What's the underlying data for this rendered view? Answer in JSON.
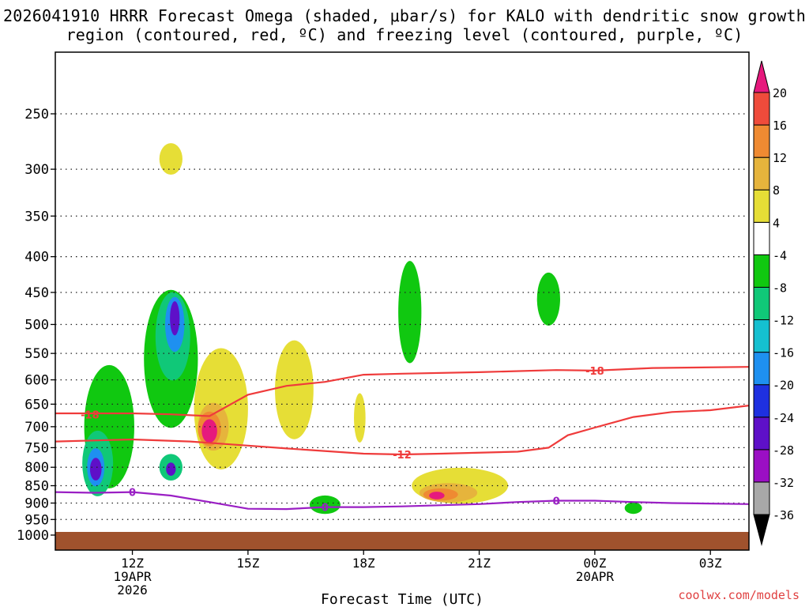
{
  "title": "2026041910 HRRR Forecast Omega (shaded, μbar/s) for KALO with dendritic snow growth region (contoured, red, ºC) and freezing level (contoured, purple, ºC)",
  "watermark": "coolwx.com/models",
  "colors": {
    "ground": "#a0522d",
    "dgz_contour": "#ef3b3b",
    "freezing_contour": "#9a1fc4",
    "grid": "#222222"
  },
  "chart_data": {
    "type": "heatmap",
    "xlabel": "Forecast Time (UTC)",
    "ylabel": "",
    "y_scale": "log",
    "ylim": [
      1000,
      200
    ],
    "grid": true,
    "x_ticks": [
      {
        "label": "12Z",
        "sub": "19APR",
        "sub2": "2026",
        "hour": 12
      },
      {
        "label": "15Z",
        "sub": "",
        "sub2": "",
        "hour": 15
      },
      {
        "label": "18Z",
        "sub": "",
        "sub2": "",
        "hour": 18
      },
      {
        "label": "21Z",
        "sub": "",
        "sub2": "",
        "hour": 21
      },
      {
        "label": "00Z",
        "sub": "20APR",
        "sub2": "",
        "hour": 24
      },
      {
        "label": "03Z",
        "sub": "",
        "sub2": "",
        "hour": 27
      }
    ],
    "xlim_hours": [
      10,
      28
    ],
    "y_ticks": [
      250,
      300,
      350,
      400,
      450,
      500,
      550,
      600,
      650,
      700,
      750,
      800,
      850,
      900,
      950,
      1000
    ],
    "colorbar": {
      "levels": [
        -36,
        -32,
        -28,
        -24,
        -20,
        -16,
        -12,
        -8,
        -4,
        4,
        8,
        12,
        16,
        20
      ],
      "colors": [
        "#a8a8a8",
        "#9b0fc4",
        "#5e10c8",
        "#1e30e0",
        "#1e90f0",
        "#15c0d0",
        "#10c878",
        "#10c810",
        "#ffffff",
        "#e6de36",
        "#e6b43c",
        "#ef8a32",
        "#ef4b3b",
        "#e6197d"
      ],
      "below_color": "#000000",
      "above_color": "#e6197d"
    },
    "omega_areas": [
      {
        "value": -8,
        "time": 11.4,
        "pressure": 700,
        "dt": 1.3,
        "dp": 280
      },
      {
        "value": -12,
        "time": 11.1,
        "pressure": 790,
        "dt": 0.8,
        "dp": 170
      },
      {
        "value": -20,
        "time": 11.05,
        "pressure": 800,
        "dt": 0.45,
        "dp": 100
      },
      {
        "value": -28,
        "time": 11.05,
        "pressure": 805,
        "dt": 0.3,
        "dp": 60
      },
      {
        "value": -8,
        "time": 13.0,
        "pressure": 560,
        "dt": 1.4,
        "dp": 250
      },
      {
        "value": -12,
        "time": 13.05,
        "pressure": 520,
        "dt": 0.9,
        "dp": 150
      },
      {
        "value": -20,
        "time": 13.1,
        "pressure": 500,
        "dt": 0.5,
        "dp": 90
      },
      {
        "value": -28,
        "time": 13.1,
        "pressure": 490,
        "dt": 0.25,
        "dp": 55
      },
      {
        "value": -12,
        "time": 13.0,
        "pressure": 800,
        "dt": 0.6,
        "dp": 70
      },
      {
        "value": -28,
        "time": 13.0,
        "pressure": 805,
        "dt": 0.25,
        "dp": 35
      },
      {
        "value": 4,
        "time": 13.0,
        "pressure": 290,
        "dt": 0.6,
        "dp": 30
      },
      {
        "value": 4,
        "time": 14.3,
        "pressure": 660,
        "dt": 1.4,
        "dp": 260
      },
      {
        "value": 8,
        "time": 14.1,
        "pressure": 700,
        "dt": 0.8,
        "dp": 110
      },
      {
        "value": 12,
        "time": 14.0,
        "pressure": 705,
        "dt": 0.6,
        "dp": 80
      },
      {
        "value": 20,
        "time": 14.0,
        "pressure": 710,
        "dt": 0.4,
        "dp": 55
      },
      {
        "value": 4,
        "time": 16.2,
        "pressure": 620,
        "dt": 1.0,
        "dp": 200
      },
      {
        "value": -8,
        "time": 17.0,
        "pressure": 905,
        "dt": 0.8,
        "dp": 55
      },
      {
        "value": 4,
        "time": 17.9,
        "pressure": 680,
        "dt": 0.3,
        "dp": 110
      },
      {
        "value": -8,
        "time": 19.2,
        "pressure": 480,
        "dt": 0.6,
        "dp": 160
      },
      {
        "value": 4,
        "time": 20.5,
        "pressure": 850,
        "dt": 2.5,
        "dp": 100
      },
      {
        "value": 8,
        "time": 20.2,
        "pressure": 870,
        "dt": 1.5,
        "dp": 55
      },
      {
        "value": 12,
        "time": 20.0,
        "pressure": 875,
        "dt": 0.9,
        "dp": 35
      },
      {
        "value": 20,
        "time": 19.9,
        "pressure": 878,
        "dt": 0.4,
        "dp": 22
      },
      {
        "value": -8,
        "time": 22.8,
        "pressure": 460,
        "dt": 0.6,
        "dp": 80
      },
      {
        "value": -8,
        "time": 25.0,
        "pressure": 915,
        "dt": 0.45,
        "dp": 35
      }
    ],
    "contours": [
      {
        "label": "-18",
        "color_key": "dgz_contour",
        "label_hour": 10.9,
        "label_pressure": 673,
        "points": [
          [
            10.0,
            670
          ],
          [
            11.0,
            670
          ],
          [
            12.0,
            670
          ],
          [
            13.0,
            672
          ],
          [
            14.0,
            676
          ],
          [
            15.0,
            630
          ],
          [
            16.0,
            612
          ],
          [
            17.0,
            604
          ],
          [
            18.0,
            590
          ],
          [
            19.0,
            588
          ],
          [
            21.0,
            585
          ],
          [
            23.0,
            581
          ],
          [
            24.0,
            582
          ],
          [
            25.5,
            577
          ],
          [
            28.0,
            575
          ]
        ]
      },
      {
        "label": "-18",
        "color_key": "dgz_contour",
        "label_hour": 24.0,
        "label_pressure": 582,
        "points": []
      },
      {
        "label": "-12",
        "color_key": "dgz_contour",
        "label_hour": 19.0,
        "label_pressure": 767,
        "points": [
          [
            10.0,
            735
          ],
          [
            12.0,
            730
          ],
          [
            13.5,
            735
          ],
          [
            15.0,
            745
          ],
          [
            16.0,
            752
          ],
          [
            18.0,
            765
          ],
          [
            19.0,
            767
          ],
          [
            20.0,
            765
          ],
          [
            22.0,
            760
          ],
          [
            22.8,
            750
          ],
          [
            23.3,
            720
          ],
          [
            24.0,
            702
          ],
          [
            25.0,
            678
          ],
          [
            26.0,
            667
          ],
          [
            27.0,
            663
          ],
          [
            28.0,
            653
          ]
        ]
      },
      {
        "label": "0",
        "color_key": "freezing_contour",
        "label_hour": 12.0,
        "label_pressure": 868,
        "points": [
          [
            10.0,
            868
          ],
          [
            11.0,
            870
          ],
          [
            12.0,
            868
          ],
          [
            13.0,
            878
          ],
          [
            14.0,
            897
          ],
          [
            15.0,
            917
          ],
          [
            16.0,
            918
          ],
          [
            17.0,
            912
          ],
          [
            18.0,
            912
          ],
          [
            19.0,
            910
          ],
          [
            21.0,
            903
          ],
          [
            22.0,
            897
          ],
          [
            23.0,
            893
          ],
          [
            24.0,
            893
          ],
          [
            25.0,
            897
          ],
          [
            26.0,
            900
          ],
          [
            28.0,
            903
          ]
        ]
      },
      {
        "label": "0",
        "color_key": "freezing_contour",
        "label_hour": 17.0,
        "label_pressure": 912,
        "points": []
      },
      {
        "label": "0",
        "color_key": "freezing_contour",
        "label_hour": 23.0,
        "label_pressure": 893,
        "points": []
      }
    ]
  }
}
